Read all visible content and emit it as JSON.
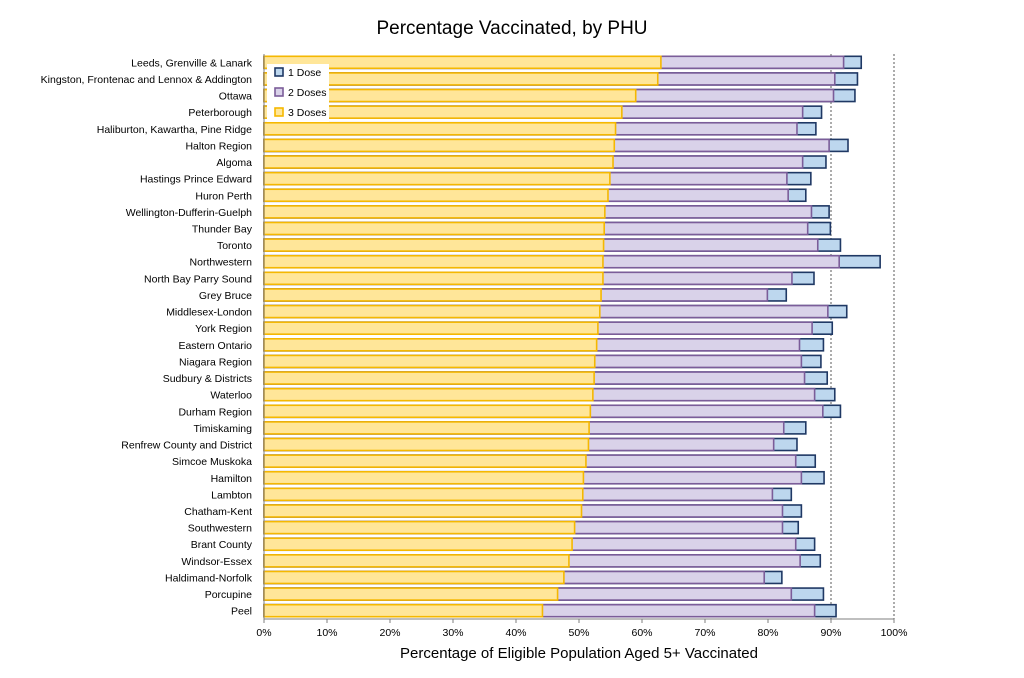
{
  "chart_data": {
    "type": "bar",
    "orientation": "horizontal",
    "stacked": false,
    "title": "Percentage Vaccinated, by PHU",
    "xlabel": "Percentage of Eligible Population Aged 5+ Vaccinated",
    "ylabel": "",
    "xlim": [
      0,
      100
    ],
    "x_ticks": [
      "0%",
      "10%",
      "20%",
      "30%",
      "40%",
      "50%",
      "60%",
      "70%",
      "80%",
      "90%",
      "100%"
    ],
    "grid": "dotted vertical line at 90% and 100%",
    "legend_position": "top-left",
    "categories": [
      "Leeds, Grenville & Lanark",
      "Kingston, Frontenac and Lennox & Addington",
      "Ottawa",
      "Peterborough",
      "Haliburton, Kawartha, Pine Ridge",
      "Halton Region",
      "Algoma",
      "Hastings Prince Edward",
      "Huron Perth",
      "Wellington-Dufferin-Guelph",
      "Thunder Bay",
      "Toronto",
      "Northwestern",
      "North Bay Parry Sound",
      "Grey Bruce",
      "Middlesex-London",
      "York Region",
      "Eastern Ontario",
      "Niagara Region",
      "Sudbury & Districts",
      "Waterloo",
      "Durham Region",
      "Timiskaming",
      "Renfrew County and District",
      "Simcoe Muskoka",
      "Hamilton",
      "Lambton",
      "Chatham-Kent",
      "Southwestern",
      "Brant County",
      "Windsor-Essex",
      "Haldimand-Norfolk",
      "Porcupine",
      "Peel"
    ],
    "series": [
      {
        "name": "1 Dose",
        "color": "#bdd7ee",
        "edge_color": "#1f3864",
        "values": [
          94.8,
          94.2,
          93.8,
          88.5,
          87.6,
          92.7,
          89.2,
          86.8,
          86.0,
          89.7,
          89.9,
          91.5,
          97.8,
          87.3,
          82.9,
          92.5,
          90.2,
          88.8,
          88.4,
          89.4,
          90.6,
          91.5,
          86.0,
          84.6,
          87.5,
          88.9,
          83.7,
          85.3,
          84.8,
          87.4,
          88.3,
          82.2,
          88.8,
          90.8
        ]
      },
      {
        "name": "2 Doses",
        "color": "#d9d2e9",
        "edge_color": "#7b5d99",
        "values": [
          92.0,
          90.6,
          90.4,
          85.5,
          84.6,
          89.7,
          85.5,
          83.0,
          83.2,
          86.9,
          86.3,
          87.9,
          91.3,
          83.8,
          79.9,
          89.5,
          87.0,
          85.0,
          85.3,
          85.8,
          87.4,
          88.7,
          82.5,
          80.9,
          84.4,
          85.3,
          80.7,
          82.3,
          82.3,
          84.4,
          85.1,
          79.4,
          83.7,
          87.4
        ]
      },
      {
        "name": "3 Doses",
        "color": "#ffe699",
        "edge_color": "#f5b800",
        "values": [
          63.0,
          62.5,
          59.0,
          56.8,
          55.8,
          55.6,
          55.4,
          54.9,
          54.6,
          54.1,
          54.0,
          53.9,
          53.8,
          53.8,
          53.5,
          53.3,
          53.0,
          52.8,
          52.5,
          52.4,
          52.2,
          51.8,
          51.6,
          51.5,
          51.1,
          50.7,
          50.6,
          50.4,
          49.3,
          48.9,
          48.4,
          47.6,
          46.6,
          44.2
        ]
      }
    ]
  }
}
